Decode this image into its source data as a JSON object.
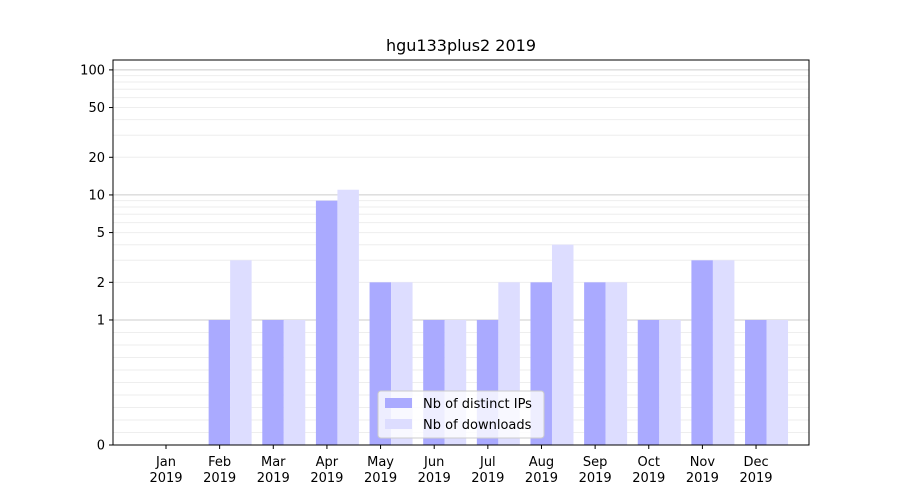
{
  "chart_data": {
    "type": "bar",
    "title": "hgu133plus2 2019",
    "xlabel": "",
    "ylabel": "",
    "y_scale": "symlog",
    "ylim": [
      0,
      120
    ],
    "y_ticks": [
      0,
      1,
      2,
      5,
      10,
      20,
      50,
      100
    ],
    "categories": [
      "Jan\n2019",
      "Feb\n2019",
      "Mar\n2019",
      "Apr\n2019",
      "May\n2019",
      "Jun\n2019",
      "Jul\n2019",
      "Aug\n2019",
      "Sep\n2019",
      "Oct\n2019",
      "Nov\n2019",
      "Dec\n2019"
    ],
    "series": [
      {
        "name": "Nb of distinct IPs",
        "color": "#aaaaff",
        "values": [
          0,
          1,
          1,
          9,
          2,
          1,
          1,
          2,
          2,
          1,
          3,
          1
        ]
      },
      {
        "name": "Nb of downloads",
        "color": "#ddddff",
        "values": [
          0,
          3,
          1,
          11,
          2,
          1,
          2,
          4,
          2,
          1,
          3,
          1
        ]
      }
    ],
    "grid": "y-minor",
    "legend_position": "lower-center"
  }
}
